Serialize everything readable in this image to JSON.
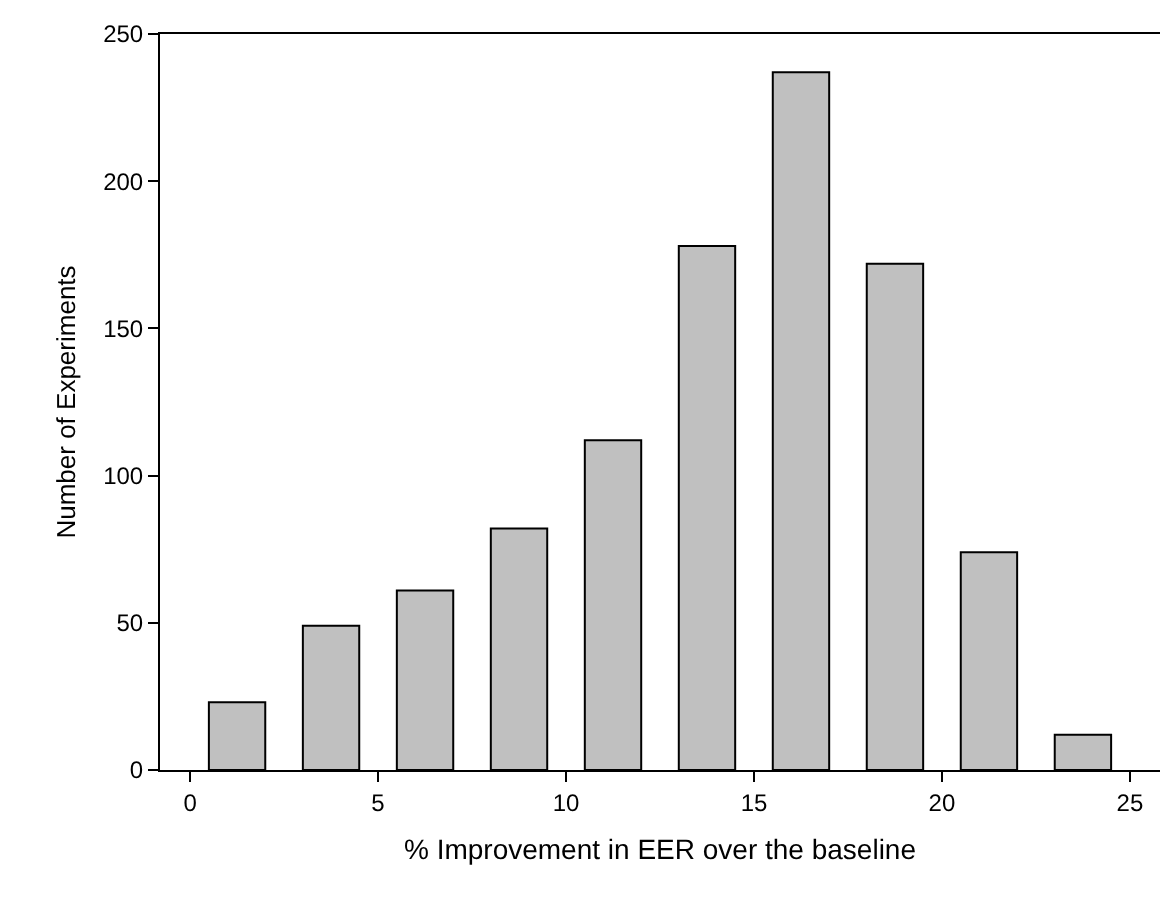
{
  "chart_data": {
    "type": "histogram",
    "xlabel": "% Improvement in EER over the baseline",
    "ylabel": "Number of Experiments",
    "bins": [
      0,
      2.5,
      5,
      7.5,
      10,
      12.5,
      15,
      17.5,
      20,
      22.5,
      25
    ],
    "values": [
      23,
      49,
      61,
      82,
      112,
      178,
      237,
      172,
      74,
      12
    ],
    "color": "#c0c0c0",
    "xlim": [
      -0.8,
      25.8
    ],
    "xticks": [
      0,
      5,
      10,
      15,
      20,
      25
    ],
    "ylim": [
      0,
      250
    ],
    "yticks": [
      0,
      50,
      100,
      150,
      200,
      250
    ],
    "grid": false
  }
}
